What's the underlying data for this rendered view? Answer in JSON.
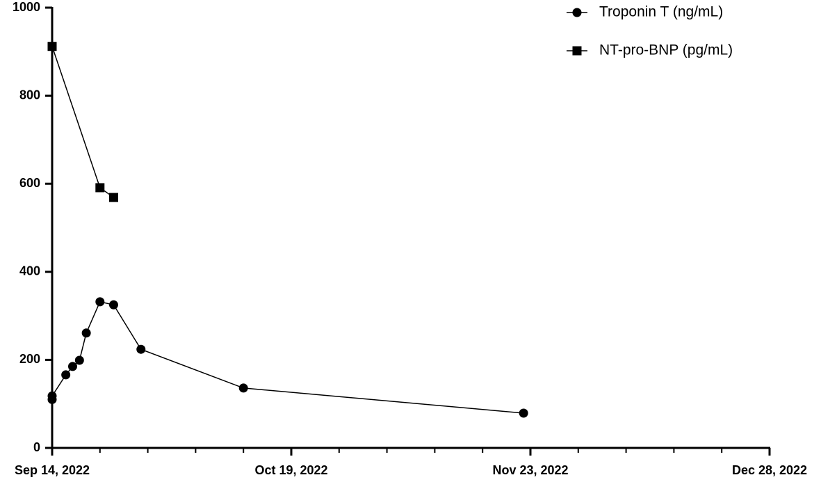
{
  "chart_data": {
    "type": "line",
    "series": [
      {
        "name": "Troponin T (ng/mL)",
        "color": "#000000",
        "marker": "circle",
        "x": [
          "2022-09-14",
          "2022-09-14",
          "2022-09-16",
          "2022-09-17",
          "2022-09-18",
          "2022-09-19",
          "2022-09-21",
          "2022-09-23",
          "2022-09-27",
          "2022-10-12",
          "2022-11-22"
        ],
        "values": [
          110,
          118,
          166,
          185,
          199,
          261,
          332,
          325,
          224,
          136,
          79
        ]
      },
      {
        "name": "NT-pro-BNP (pg/mL)",
        "color": "#000000",
        "marker": "square",
        "x": [
          "2022-09-14",
          "2022-09-21",
          "2022-09-23"
        ],
        "values": [
          912,
          591,
          569
        ]
      }
    ],
    "xlim": [
      "2022-09-14",
      "2022-12-28"
    ],
    "xticks": [
      {
        "value": "2022-09-14",
        "label": "Sep 14, 2022"
      },
      {
        "value": "2022-10-19",
        "label": "Oct 19, 2022"
      },
      {
        "value": "2022-11-23",
        "label": "Nov 23, 2022"
      },
      {
        "value": "2022-12-28",
        "label": "Dec 28, 2022"
      }
    ],
    "xminorticks": [
      "2022-09-21",
      "2022-09-28",
      "2022-10-05",
      "2022-10-12",
      "2022-10-26",
      "2022-11-02",
      "2022-11-09",
      "2022-11-16",
      "2022-11-30",
      "2022-12-07",
      "2022-12-14",
      "2022-12-21"
    ],
    "ylim": [
      0,
      1000
    ],
    "yticks": [
      0,
      200,
      400,
      600,
      800,
      1000
    ],
    "grid": false,
    "legend": "top-right"
  }
}
